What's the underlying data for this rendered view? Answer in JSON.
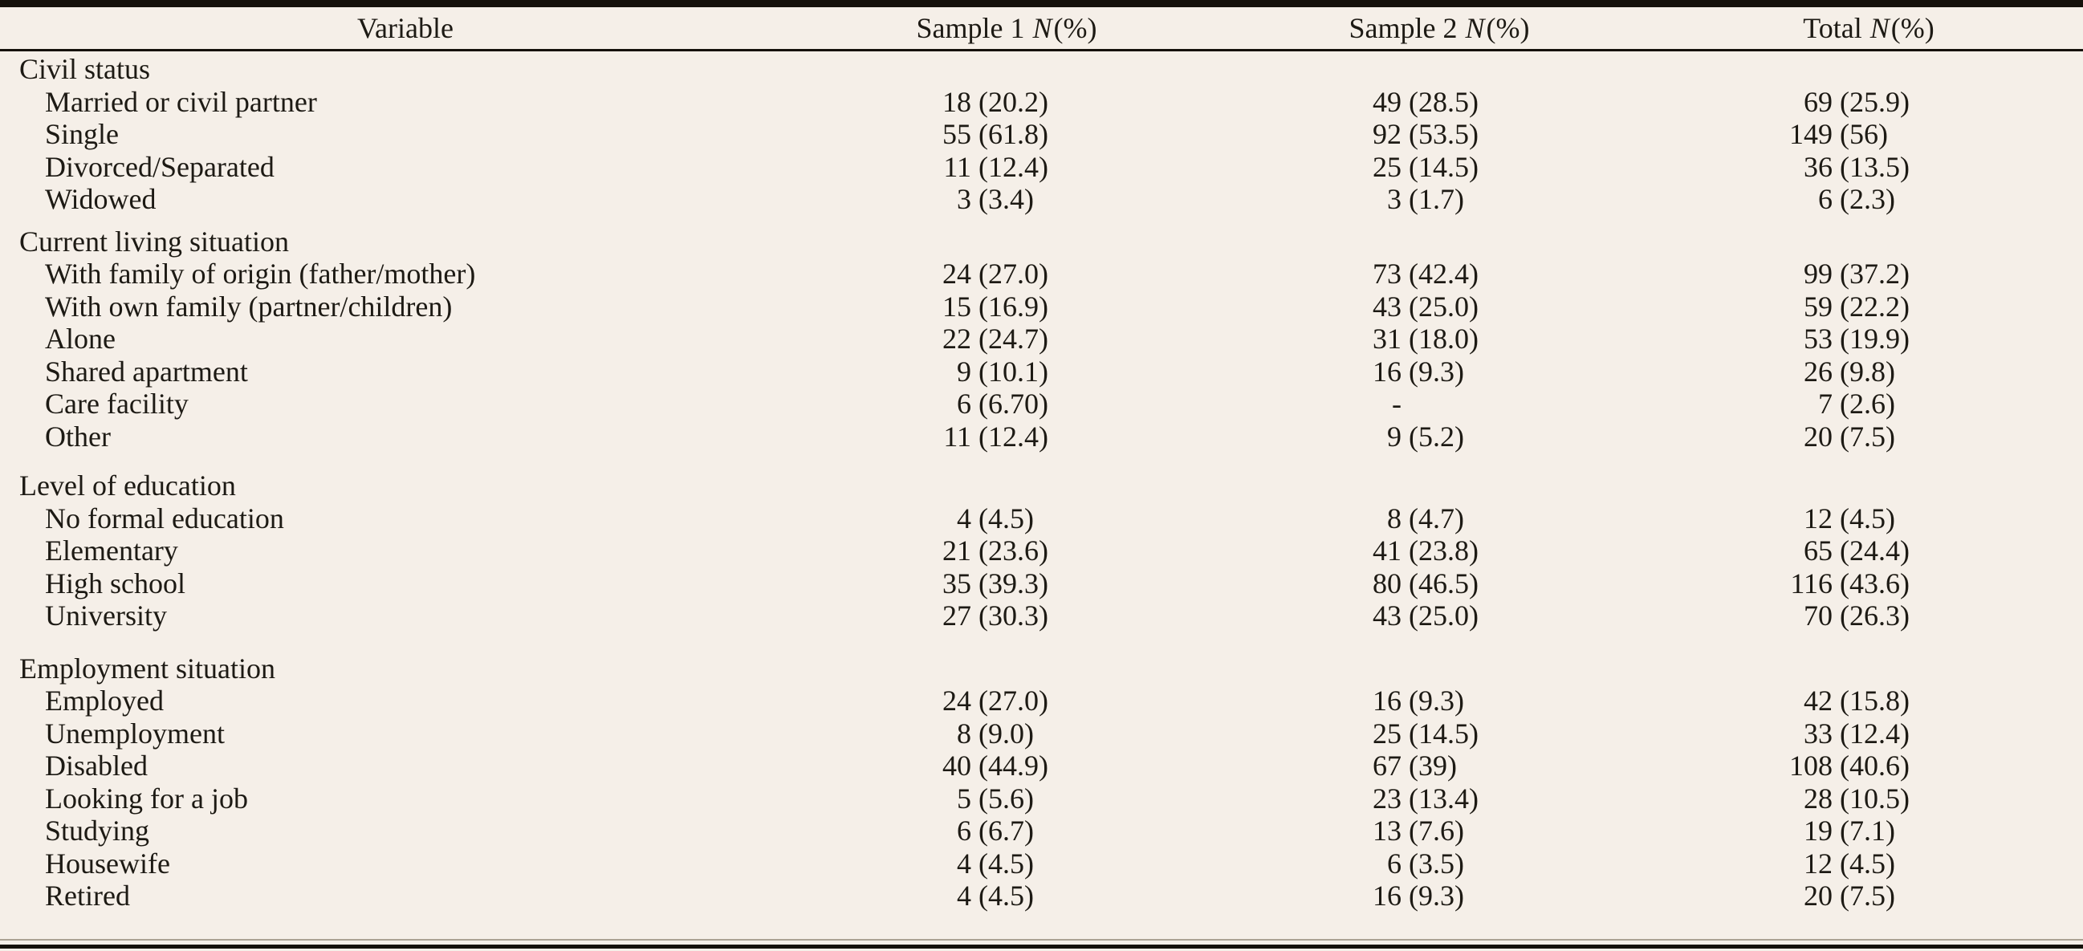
{
  "page": {
    "background_color": "#f5efe8",
    "rule_color": "#15110b",
    "text_color": "#1d1a14"
  },
  "header": {
    "variable_label": "Variable",
    "columns": [
      {
        "name": "Sample 1",
        "n": "N",
        "pct": "(%)"
      },
      {
        "name": "Sample 2",
        "n": "N",
        "pct": "(%)"
      },
      {
        "name": "Total",
        "n": "N",
        "pct": "(%)"
      }
    ]
  },
  "sections": [
    {
      "title": "Civil status",
      "rows": [
        {
          "label": "Married or civil partner",
          "values": [
            {
              "n": "18",
              "pct": "(20.2)"
            },
            {
              "n": "49",
              "pct": "(28.5)"
            },
            {
              "n": "69",
              "pct": "(25.9)"
            }
          ]
        },
        {
          "label": "Single",
          "values": [
            {
              "n": "55",
              "pct": "(61.8)"
            },
            {
              "n": "92",
              "pct": "(53.5)"
            },
            {
              "n": "149",
              "pct": "(56)"
            }
          ]
        },
        {
          "label": "Divorced/Separated",
          "values": [
            {
              "n": "11",
              "pct": "(12.4)"
            },
            {
              "n": "25",
              "pct": "(14.5)"
            },
            {
              "n": "36",
              "pct": "(13.5)"
            }
          ]
        },
        {
          "label": "Widowed",
          "values": [
            {
              "n": "3",
              "pct": "(3.4)"
            },
            {
              "n": "3",
              "pct": "(1.7)"
            },
            {
              "n": "6",
              "pct": "(2.3)"
            }
          ]
        }
      ]
    },
    {
      "title": "Current living situation",
      "rows": [
        {
          "label": "With family of origin (father/mother)",
          "values": [
            {
              "n": "24",
              "pct": "(27.0)"
            },
            {
              "n": "73",
              "pct": "(42.4)"
            },
            {
              "n": "99",
              "pct": "(37.2)"
            }
          ]
        },
        {
          "label": "With own family (partner/children)",
          "values": [
            {
              "n": "15",
              "pct": "(16.9)"
            },
            {
              "n": "43",
              "pct": "(25.0)"
            },
            {
              "n": "59",
              "pct": "(22.2)"
            }
          ]
        },
        {
          "label": "Alone",
          "values": [
            {
              "n": "22",
              "pct": "(24.7)"
            },
            {
              "n": "31",
              "pct": "(18.0)"
            },
            {
              "n": "53",
              "pct": "(19.9)"
            }
          ]
        },
        {
          "label": "Shared apartment",
          "values": [
            {
              "n": "9",
              "pct": "(10.1)"
            },
            {
              "n": "16",
              "pct": "(9.3)"
            },
            {
              "n": "26",
              "pct": "(9.8)"
            }
          ]
        },
        {
          "label": "Care facility",
          "values": [
            {
              "n": "6",
              "pct": "(6.70)"
            },
            {
              "n": "-",
              "pct": ""
            },
            {
              "n": "7",
              "pct": "(2.6)"
            }
          ]
        },
        {
          "label": "Other",
          "values": [
            {
              "n": "11",
              "pct": "(12.4)"
            },
            {
              "n": "9",
              "pct": "(5.2)"
            },
            {
              "n": "20",
              "pct": "(7.5)"
            }
          ]
        }
      ]
    },
    {
      "title": "Level of education",
      "rows": [
        {
          "label": "No formal education",
          "values": [
            {
              "n": "4",
              "pct": "(4.5)"
            },
            {
              "n": "8",
              "pct": "(4.7)"
            },
            {
              "n": "12",
              "pct": "(4.5)"
            }
          ]
        },
        {
          "label": "Elementary",
          "values": [
            {
              "n": "21",
              "pct": "(23.6)"
            },
            {
              "n": "41",
              "pct": "(23.8)"
            },
            {
              "n": "65",
              "pct": "(24.4)"
            }
          ]
        },
        {
          "label": "High school",
          "values": [
            {
              "n": "35",
              "pct": "(39.3)"
            },
            {
              "n": "80",
              "pct": "(46.5)"
            },
            {
              "n": "116",
              "pct": "(43.6)"
            }
          ]
        },
        {
          "label": "University",
          "values": [
            {
              "n": "27",
              "pct": "(30.3)"
            },
            {
              "n": "43",
              "pct": "(25.0)"
            },
            {
              "n": "70",
              "pct": "(26.3)"
            }
          ]
        }
      ]
    },
    {
      "title": "Employment situation",
      "rows": [
        {
          "label": "Employed",
          "values": [
            {
              "n": "24",
              "pct": "(27.0)"
            },
            {
              "n": "16",
              "pct": "(9.3)"
            },
            {
              "n": "42",
              "pct": "(15.8)"
            }
          ]
        },
        {
          "label": "Unemployment",
          "values": [
            {
              "n": "8",
              "pct": "(9.0)"
            },
            {
              "n": "25",
              "pct": "(14.5)"
            },
            {
              "n": "33",
              "pct": "(12.4)"
            }
          ]
        },
        {
          "label": "Disabled",
          "values": [
            {
              "n": "40",
              "pct": "(44.9)"
            },
            {
              "n": "67",
              "pct": "(39)"
            },
            {
              "n": "108",
              "pct": "(40.6)"
            }
          ]
        },
        {
          "label": "Looking for a job",
          "values": [
            {
              "n": "5",
              "pct": "(5.6)"
            },
            {
              "n": "23",
              "pct": "(13.4)"
            },
            {
              "n": "28",
              "pct": "(10.5)"
            }
          ]
        },
        {
          "label": "Studying",
          "values": [
            {
              "n": "6",
              "pct": "(6.7)"
            },
            {
              "n": "13",
              "pct": "(7.6)"
            },
            {
              "n": "19",
              "pct": "(7.1)"
            }
          ]
        },
        {
          "label": "Housewife",
          "values": [
            {
              "n": "4",
              "pct": "(4.5)"
            },
            {
              "n": "6",
              "pct": "(3.5)"
            },
            {
              "n": "12",
              "pct": "(4.5)"
            }
          ]
        },
        {
          "label": "Retired",
          "values": [
            {
              "n": "4",
              "pct": "(4.5)"
            },
            {
              "n": "16",
              "pct": "(9.3)"
            },
            {
              "n": "20",
              "pct": "(7.5)"
            }
          ]
        }
      ]
    }
  ]
}
